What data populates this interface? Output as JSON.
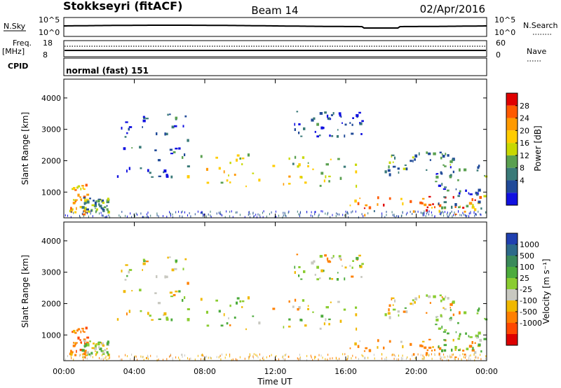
{
  "header": {
    "title": "Stokkseyri (fitACF)",
    "beam": "Beam 14",
    "date": "02/Apr/2016"
  },
  "top_panel": {
    "nsky_label": "N.Sky",
    "nsearch_label": "N.Search",
    "nave_label": "Nave",
    "freq_label_1": "Freq.",
    "freq_label_2": "[MHz]",
    "cpid_label": "CPID",
    "cpid_value": "normal (fast) 151",
    "noise_ticks_left": [
      "10^5",
      "10^0"
    ],
    "noise_ticks_right": [
      "10^5",
      "10^0"
    ],
    "freq_ticks": [
      "18",
      "8"
    ],
    "nave_ticks": [
      "60",
      "0"
    ]
  },
  "panels": {
    "ylabel": "Slant Range [km]",
    "xlabel": "Time UT",
    "yticks": [
      "4000",
      "3000",
      "2000",
      "1000"
    ],
    "xticks": [
      "00:00",
      "04:00",
      "08:00",
      "12:00",
      "16:00",
      "20:00",
      "00:00"
    ]
  },
  "colorbars": {
    "power": {
      "label": "Power [dB]",
      "ticks": [
        "28",
        "24",
        "20",
        "16",
        "12",
        "8",
        "4"
      ],
      "colors": [
        "#e00000",
        "#ff5a00",
        "#ff9a00",
        "#ffcc00",
        "#c8d800",
        "#5aa050",
        "#3a7a78",
        "#204a98",
        "#1010e0"
      ]
    },
    "velocity": {
      "label": "Velocity [m s⁻¹]",
      "ticks": [
        "1000",
        "500",
        "100",
        "25",
        "-25",
        "-100",
        "-500",
        "-1000"
      ],
      "colors": [
        "#2040b0",
        "#2d6a8a",
        "#3a8a5a",
        "#4cab3c",
        "#8acc30",
        "#c8c8c0",
        "#f0b800",
        "#ff8000",
        "#ff4800",
        "#dd0000"
      ]
    }
  },
  "chart_data": {
    "type": "heatmap",
    "x_range_hours": [
      0,
      24
    ],
    "y_range_km": [
      180,
      4600
    ],
    "echo_regions": [
      {
        "t0": 6.9,
        "t1": 16.8,
        "r0": 1200,
        "r1": 2250,
        "power_db": 18,
        "velocity": 0
      },
      {
        "t0": 0.3,
        "t1": 1.3,
        "r0": 300,
        "r1": 1300,
        "power_db": 22,
        "velocity": -200
      },
      {
        "t0": 1.0,
        "t1": 2.6,
        "r0": 400,
        "r1": 900,
        "power_db": 12,
        "velocity": 50
      },
      {
        "t0": 16.2,
        "t1": 23.8,
        "r0": 280,
        "r1": 900,
        "power_db": 26,
        "velocity": -120
      },
      {
        "t0": 21.0,
        "t1": 24.0,
        "r0": 500,
        "r1": 1900,
        "power_db": 10,
        "velocity": 150
      },
      {
        "t0": 3.0,
        "t1": 7.0,
        "r0": 1500,
        "r1": 3600,
        "power_db": 8,
        "velocity": 20
      },
      {
        "t0": 13.0,
        "t1": 17.0,
        "r0": 2800,
        "r1": 3600,
        "power_db": 7,
        "velocity": 0
      },
      {
        "t0": 18.2,
        "t1": 22.5,
        "r0": 1600,
        "r1": 2300,
        "power_db": 12,
        "velocity": -30
      }
    ]
  }
}
